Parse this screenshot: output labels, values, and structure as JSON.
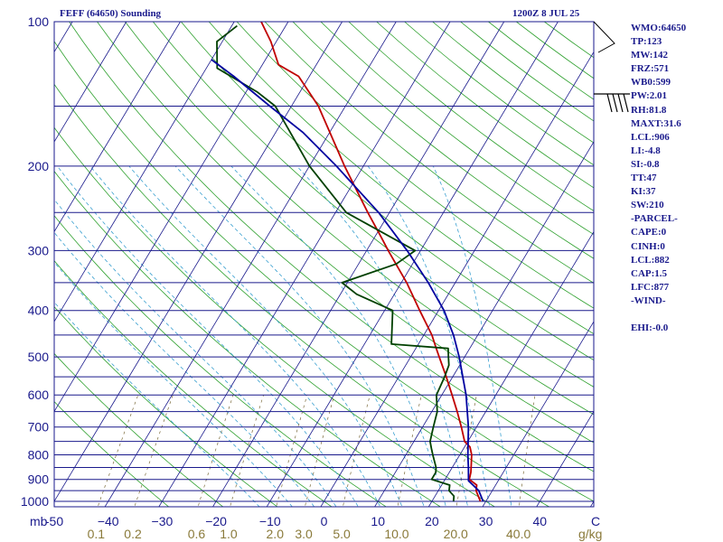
{
  "header": {
    "station_title": "FEFF (64650) Sounding",
    "time_title": "1200Z  8 JUL 25"
  },
  "indices": [
    "WMO:64650",
    "TP:123",
    "MW:142",
    "FRZ:571",
    "WB0:599",
    "PW:2.01",
    "RH:81.8",
    "MAXT:31.6",
    "LCL:906",
    "LI:-4.8",
    "SI:-0.8",
    "TT:47",
    "KI:37",
    "SW:210",
    "-PARCEL-",
    "CAPE:0",
    "CINH:0",
    "LCL:882",
    "CAP:1.5",
    "LFC:877",
    "-WIND-",
    "",
    "EHI:-0.0"
  ],
  "colors": {
    "isobar": "#1a1a8c",
    "isotherm": "#1a1a8c",
    "dry_adiabat": "#2ea02e",
    "moist_adiabat": "#3aa0d0",
    "mixing_ratio": "#7a6a3a",
    "temperature": "#c00000",
    "dewpoint": "#004000",
    "parcel": "#0000a0",
    "wind_barb": "#000000"
  },
  "chart_data": {
    "type": "line",
    "diagram": "skew-t log-p",
    "title": "FEFF (64650) Sounding",
    "subtitle": "1200Z  8 JUL 25",
    "xlabel": "C",
    "ylabel": "mb",
    "pressure_unit_label": "mb",
    "mixing_ratio_unit_label": "g/kg",
    "xlim": [
      -50,
      50
    ],
    "ylim": [
      1050,
      100
    ],
    "y_scale": "log",
    "grid": true,
    "pressure_ticks": [
      100,
      200,
      300,
      400,
      500,
      600,
      700,
      800,
      900,
      1000
    ],
    "pressure_tick_labels": [
      "100",
      "200",
      "300",
      "400",
      "500",
      "600",
      "700",
      "800",
      "900",
      "1000"
    ],
    "isobar_levels": [
      100,
      150,
      200,
      250,
      300,
      350,
      400,
      450,
      500,
      550,
      600,
      650,
      700,
      750,
      800,
      850,
      900,
      950,
      1000,
      1050
    ],
    "temperature_ticks": [
      -50,
      -40,
      -30,
      -20,
      -10,
      0,
      10,
      20,
      30,
      40
    ],
    "temperature_tick_labels": [
      "-50",
      "−40",
      "−30",
      "−20",
      "−10",
      "0",
      "10",
      "20",
      "30",
      "40"
    ],
    "mixing_ratio_values": [
      0.1,
      0.2,
      0.6,
      1.0,
      2.0,
      3.0,
      5.0,
      10.0,
      20.0,
      40.0
    ],
    "mixing_ratio_labels": [
      "0.1",
      "0.2",
      "0.6",
      "1.0",
      "2.0",
      "3.0",
      "5.0",
      "10.0",
      "20.0",
      "40.0"
    ],
    "series": [
      {
        "key": "temperature",
        "points": [
          [
            1000,
            29.0
          ],
          [
            975,
            28.0
          ],
          [
            950,
            27.0
          ],
          [
            925,
            26.5
          ],
          [
            900,
            24.5
          ],
          [
            870,
            24.0
          ],
          [
            850,
            23.5
          ],
          [
            800,
            22.2
          ],
          [
            770,
            21.0
          ],
          [
            750,
            19.4
          ],
          [
            700,
            17.2
          ],
          [
            650,
            14.7
          ],
          [
            600,
            11.9
          ],
          [
            550,
            8.8
          ],
          [
            500,
            5.3
          ],
          [
            480,
            3.8
          ],
          [
            450,
            1.5
          ],
          [
            400,
            -3.5
          ],
          [
            350,
            -9.0
          ],
          [
            300,
            -16.0
          ],
          [
            280,
            -19.0
          ],
          [
            250,
            -24.0
          ],
          [
            200,
            -33.5
          ],
          [
            170,
            -40.0
          ],
          [
            150,
            -45.0
          ],
          [
            130,
            -52.0
          ],
          [
            123,
            -57.0
          ],
          [
            110,
            -61.0
          ],
          [
            100,
            -65.0
          ]
        ]
      },
      {
        "key": "dewpoint",
        "points": [
          [
            1000,
            24.0
          ],
          [
            975,
            23.5
          ],
          [
            950,
            22.0
          ],
          [
            925,
            21.5
          ],
          [
            900,
            17.5
          ],
          [
            870,
            17.5
          ],
          [
            850,
            17.0
          ],
          [
            800,
            15.0
          ],
          [
            775,
            14.0
          ],
          [
            750,
            13.0
          ],
          [
            700,
            12.0
          ],
          [
            650,
            11.0
          ],
          [
            600,
            9.0
          ],
          [
            550,
            8.5
          ],
          [
            520,
            8.0
          ],
          [
            500,
            7.0
          ],
          [
            480,
            6.0
          ],
          [
            470,
            -5.0
          ],
          [
            400,
            -8.5
          ],
          [
            370,
            -17.0
          ],
          [
            350,
            -21.0
          ],
          [
            320,
            -13.0
          ],
          [
            300,
            -11.0
          ],
          [
            250,
            -28.0
          ],
          [
            200,
            -40.0
          ],
          [
            150,
            -53.0
          ],
          [
            140,
            -58.0
          ],
          [
            125,
            -68.0
          ],
          [
            110,
            -71.0
          ],
          [
            102,
            -69.0
          ]
        ]
      },
      {
        "key": "parcel",
        "points": [
          [
            1000,
            29.5
          ],
          [
            950,
            27.5
          ],
          [
            906,
            24.5
          ],
          [
            850,
            23.0
          ],
          [
            800,
            21.5
          ],
          [
            700,
            18.5
          ],
          [
            600,
            14.5
          ],
          [
            500,
            9.0
          ],
          [
            450,
            5.5
          ],
          [
            400,
            1.0
          ],
          [
            350,
            -5.0
          ],
          [
            300,
            -12.5
          ],
          [
            250,
            -22.0
          ],
          [
            200,
            -35.0
          ],
          [
            170,
            -45.0
          ],
          [
            150,
            -54.0
          ],
          [
            130,
            -64.0
          ],
          [
            120,
            -70.0
          ]
        ]
      }
    ]
  }
}
